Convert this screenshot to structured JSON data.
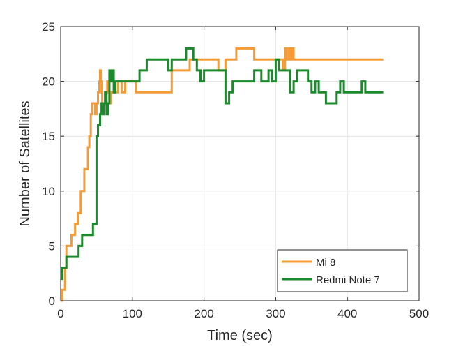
{
  "chart_data": {
    "type": "line",
    "title": "",
    "xlabel": "Time (sec)",
    "ylabel": "Number of Satellites",
    "xlim": [
      0,
      500
    ],
    "ylim": [
      0,
      25
    ],
    "xticks": [
      0,
      100,
      200,
      300,
      400,
      500
    ],
    "yticks": [
      0,
      5,
      10,
      15,
      20,
      25
    ],
    "grid": true,
    "legend": "bottom-right",
    "series": [
      {
        "name": "Mi 8",
        "color": "#f59b36",
        "x": [
          0,
          2,
          4,
          6,
          8,
          10,
          15,
          20,
          24,
          28,
          30,
          33,
          36,
          38,
          40,
          42,
          44,
          46,
          48,
          50,
          52,
          54,
          55,
          56,
          57,
          58,
          60,
          62,
          65,
          68,
          70,
          72,
          75,
          80,
          85,
          90,
          95,
          100,
          105,
          110,
          115,
          120,
          130,
          140,
          150,
          155,
          160,
          170,
          180,
          190,
          200,
          210,
          215,
          220,
          230,
          240,
          245,
          250,
          260,
          270,
          275,
          280,
          290,
          300,
          305,
          310,
          313,
          315,
          318,
          320,
          323,
          325,
          330,
          340,
          350,
          380,
          400,
          420,
          440,
          450
        ],
        "y": [
          0,
          1,
          1,
          3,
          5,
          5,
          6,
          7,
          8,
          10,
          10,
          12,
          12,
          14,
          15,
          17,
          18,
          18,
          17,
          18,
          19,
          20,
          21,
          20,
          19,
          18,
          18,
          19,
          20,
          18,
          19,
          19,
          19,
          20,
          19,
          20,
          20,
          20,
          19,
          19,
          19,
          19,
          19,
          19,
          19,
          21,
          21,
          21,
          22,
          22,
          22,
          22,
          22,
          21,
          22,
          22,
          23,
          23,
          23,
          22,
          22,
          22,
          22,
          22,
          22,
          21,
          23,
          22,
          23,
          22,
          23,
          22,
          22,
          22,
          22,
          22,
          22,
          22,
          22,
          22
        ]
      },
      {
        "name": "Redmi Note 7",
        "color": "#1a8a2a",
        "x": [
          0,
          2,
          5,
          8,
          12,
          15,
          20,
          25,
          30,
          35,
          40,
          45,
          48,
          50,
          52,
          55,
          57,
          58,
          60,
          62,
          64,
          66,
          68,
          70,
          72,
          74,
          76,
          80,
          85,
          90,
          100,
          110,
          120,
          130,
          140,
          150,
          155,
          160,
          165,
          170,
          175,
          180,
          185,
          190,
          195,
          200,
          205,
          210,
          220,
          230,
          235,
          240,
          250,
          260,
          270,
          280,
          290,
          295,
          300,
          305,
          310,
          315,
          320,
          325,
          330,
          335,
          340,
          345,
          350,
          355,
          360,
          370,
          380,
          385,
          390,
          395,
          400,
          410,
          420,
          425,
          430,
          440,
          450
        ],
        "y": [
          2,
          3,
          3,
          4,
          4,
          4,
          4,
          5,
          6,
          6,
          6,
          7,
          7,
          15,
          16,
          17,
          18,
          17,
          18,
          19,
          17,
          18,
          21,
          20,
          21,
          19,
          20,
          20,
          20,
          20,
          20,
          21,
          22,
          22,
          22,
          21,
          22,
          22,
          22,
          22,
          23,
          23,
          22,
          21,
          20,
          21,
          21,
          21,
          21,
          18,
          19,
          20,
          20,
          20,
          21,
          20,
          21,
          20,
          22,
          21,
          21,
          21,
          19,
          20,
          21,
          21,
          21,
          20,
          19,
          20,
          19,
          18,
          18,
          19,
          20,
          19,
          19,
          19,
          20,
          19,
          19,
          19,
          19
        ]
      }
    ]
  }
}
